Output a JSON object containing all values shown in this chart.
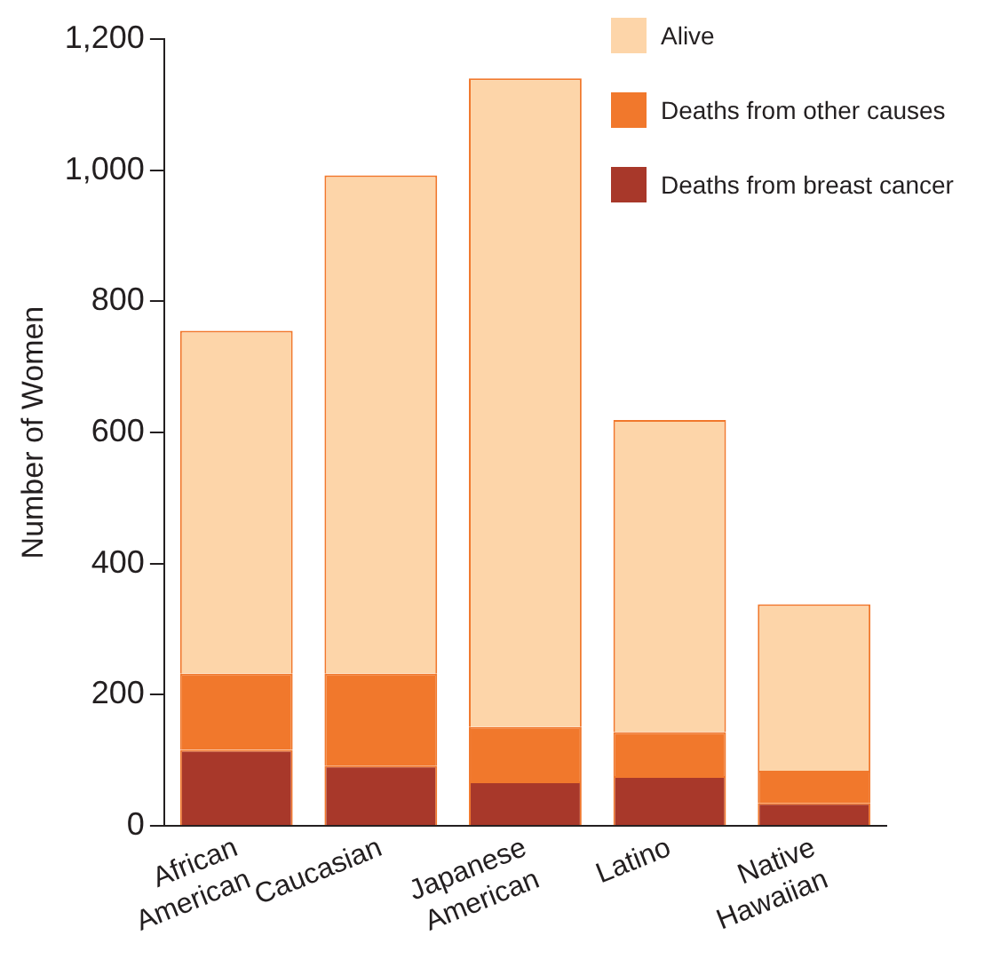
{
  "chart_data": {
    "type": "bar",
    "ylabel": "Number of Women",
    "categories": [
      "African American",
      "Caucasian",
      "Japanese American",
      "Latino",
      "Native Hawaiian"
    ],
    "stacked": true,
    "series": [
      {
        "name": "Deaths from breast cancer",
        "color": "#a8382a",
        "values": [
          116,
          92,
          68,
          76,
          35
        ]
      },
      {
        "name": "Deaths from other causes",
        "color": "#f1782c",
        "values": [
          116,
          140,
          83,
          67,
          49
        ]
      },
      {
        "name": "Alive",
        "color": "#fdd5a9",
        "values": [
          523,
          760,
          989,
          476,
          254
        ]
      }
    ],
    "ylim": [
      0,
      1200
    ],
    "yticks": [
      {
        "value": 0,
        "label": "0"
      },
      {
        "value": 200,
        "label": "200"
      },
      {
        "value": 400,
        "label": "400"
      },
      {
        "value": 600,
        "label": "600"
      },
      {
        "value": 800,
        "label": "800"
      },
      {
        "value": 1000,
        "label": "1,000"
      },
      {
        "value": 1200,
        "label": "1,200"
      }
    ],
    "grid": false,
    "legend": "top right"
  }
}
